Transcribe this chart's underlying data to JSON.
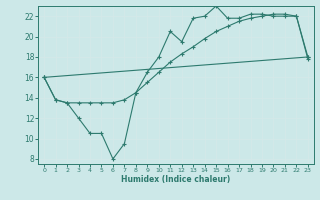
{
  "xlabel": "Humidex (Indice chaleur)",
  "xlim": [
    -0.5,
    23.5
  ],
  "ylim": [
    7.5,
    23.0
  ],
  "yticks": [
    8,
    10,
    12,
    14,
    16,
    18,
    20,
    22
  ],
  "xticks": [
    0,
    1,
    2,
    3,
    4,
    5,
    6,
    7,
    8,
    9,
    10,
    11,
    12,
    13,
    14,
    15,
    16,
    17,
    18,
    19,
    20,
    21,
    22,
    23
  ],
  "bg_color": "#cce8e8",
  "grid_color": "#b0d4d4",
  "line_color": "#2d7a6e",
  "line1_x": [
    0,
    1,
    2,
    3,
    4,
    5,
    6,
    7,
    8,
    9,
    10,
    11,
    12,
    13,
    14,
    15,
    16,
    17,
    18,
    19,
    20,
    21,
    22,
    23
  ],
  "line1_y": [
    16.0,
    13.8,
    13.5,
    12.0,
    10.5,
    10.5,
    8.0,
    9.5,
    14.5,
    16.5,
    18.0,
    20.5,
    19.5,
    21.8,
    22.0,
    23.0,
    21.8,
    21.8,
    22.2,
    22.2,
    22.0,
    22.0,
    22.0,
    17.8
  ],
  "line2_x": [
    0,
    1,
    2,
    3,
    4,
    5,
    6,
    7,
    8,
    9,
    10,
    11,
    12,
    13,
    14,
    15,
    16,
    17,
    18,
    19,
    20,
    21,
    22,
    23
  ],
  "line2_y": [
    16.0,
    13.8,
    13.5,
    13.5,
    13.5,
    13.5,
    13.5,
    13.8,
    14.5,
    15.5,
    16.5,
    17.5,
    18.3,
    19.0,
    19.8,
    20.5,
    21.0,
    21.5,
    21.8,
    22.0,
    22.2,
    22.2,
    22.0,
    18.0
  ],
  "line3_x": [
    0,
    23
  ],
  "line3_y": [
    16.0,
    18.0
  ]
}
